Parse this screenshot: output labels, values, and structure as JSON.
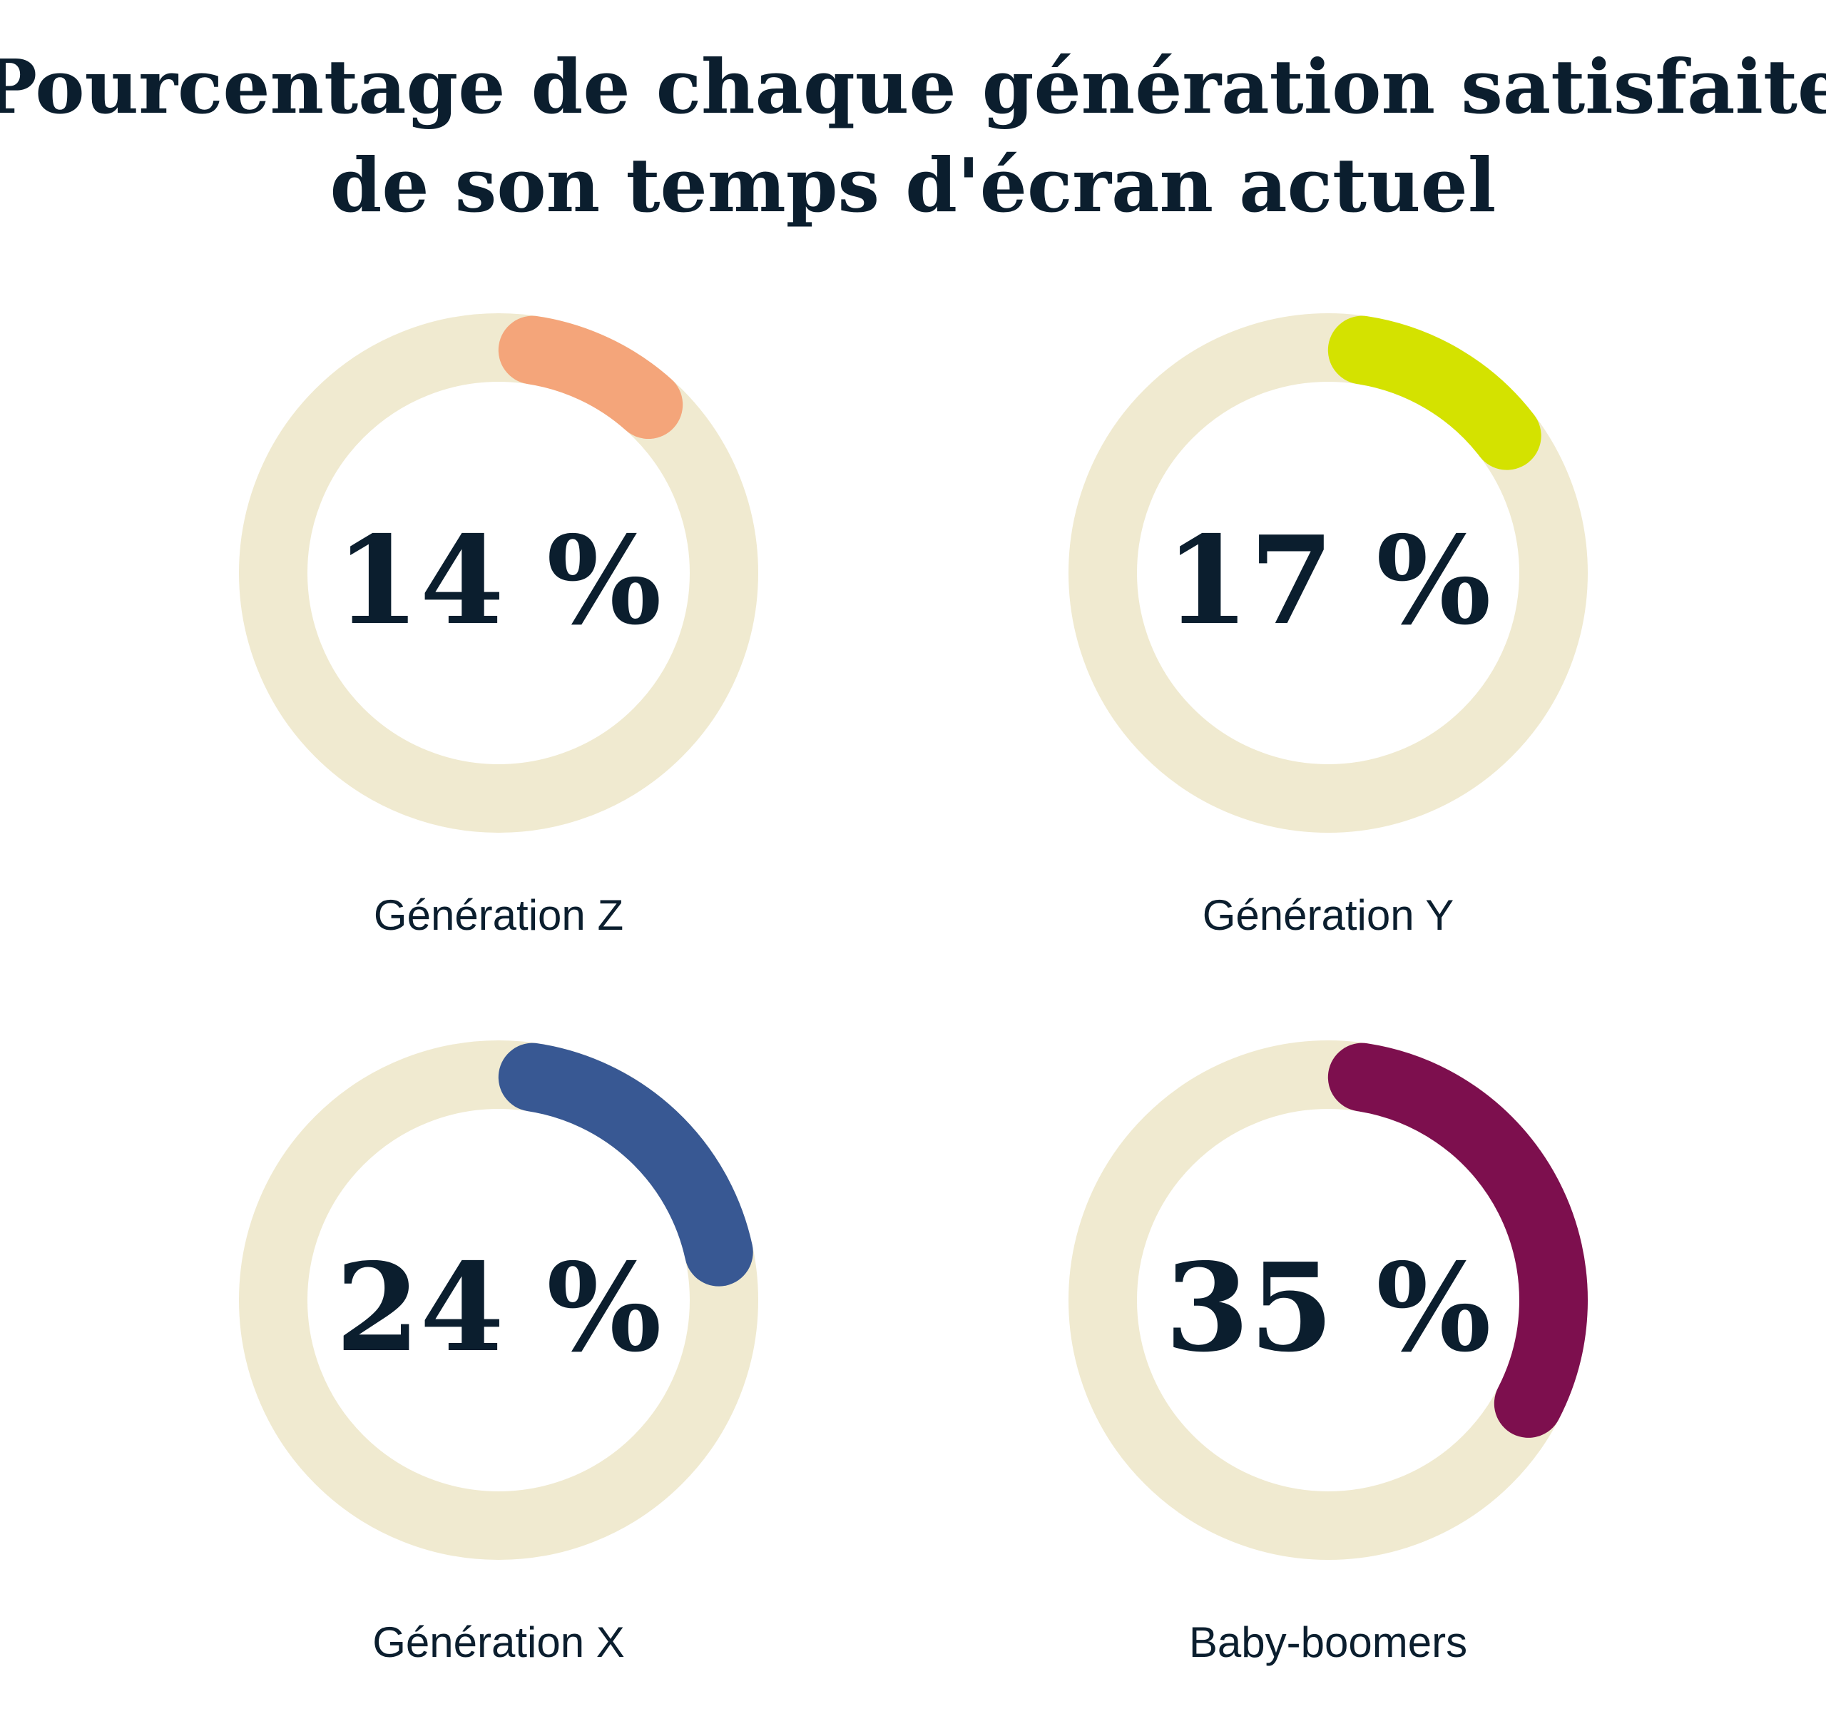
{
  "chart_data": {
    "type": "donut",
    "title_lines": [
      "Pourcentage de chaque génération satisfaite",
      "de son temps d'écran actuel"
    ],
    "track_color": "#f0ead0",
    "items": [
      {
        "label": "Génération Z",
        "value": 14,
        "display": "14 %",
        "color": "#f4a57a"
      },
      {
        "label": "Génération Y",
        "value": 17,
        "display": "17 %",
        "color": "#d4e200"
      },
      {
        "label": "Génération X",
        "value": 24,
        "display": "24 %",
        "color": "#385893"
      },
      {
        "label": "Baby-boomers",
        "value": 35,
        "display": "35 %",
        "color": "#7d0f4e"
      }
    ],
    "unit": "%",
    "max": 100
  }
}
